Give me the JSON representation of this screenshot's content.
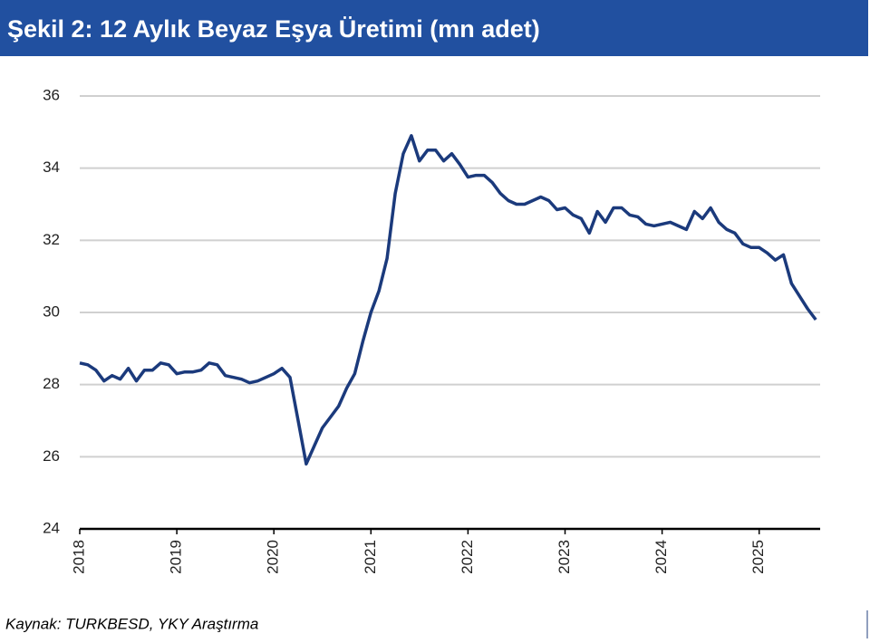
{
  "chart_data": {
    "type": "line",
    "title": "Şekil 2: 12 Aylık Beyaz Eşya Üretimi (mn adet)",
    "source": "Kaynak: TURKBESD, YKY Araştırma",
    "categories": [
      "2018",
      null,
      null,
      null,
      null,
      null,
      null,
      null,
      null,
      null,
      null,
      null,
      "2019",
      null,
      null,
      null,
      null,
      null,
      null,
      null,
      null,
      null,
      null,
      null,
      "2020",
      null,
      null,
      null,
      null,
      null,
      null,
      null,
      null,
      null,
      null,
      null,
      "2021",
      null,
      null,
      null,
      null,
      null,
      null,
      null,
      null,
      null,
      null,
      null,
      "2022",
      null,
      null,
      null,
      null,
      null,
      null,
      null,
      null,
      null,
      null,
      null,
      "2023",
      null,
      null,
      null,
      null,
      null,
      null,
      null,
      null,
      null,
      null,
      null,
      "2024",
      null,
      null,
      null,
      null,
      null,
      null,
      null,
      null,
      null,
      null,
      null,
      "2025",
      null,
      null,
      null,
      null,
      null,
      null,
      null
    ],
    "values": [
      28.6,
      28.55,
      28.4,
      28.1,
      28.25,
      28.15,
      28.45,
      28.1,
      28.4,
      28.4,
      28.6,
      28.55,
      28.3,
      28.35,
      28.35,
      28.4,
      28.6,
      28.55,
      28.25,
      28.2,
      28.15,
      28.05,
      28.1,
      28.2,
      28.3,
      28.45,
      28.2,
      27.0,
      25.8,
      26.3,
      26.8,
      27.1,
      27.4,
      27.9,
      28.3,
      29.2,
      30.0,
      30.6,
      31.5,
      33.3,
      34.4,
      34.9,
      34.2,
      34.5,
      34.5,
      34.2,
      34.4,
      34.1,
      33.75,
      33.8,
      33.8,
      33.6,
      33.3,
      33.1,
      33.0,
      33.0,
      33.1,
      33.2,
      33.1,
      32.85,
      32.9,
      32.7,
      32.6,
      32.2,
      32.8,
      32.5,
      32.9,
      32.9,
      32.7,
      32.65,
      32.45,
      32.4,
      32.45,
      32.5,
      32.4,
      32.3,
      32.8,
      32.6,
      32.9,
      32.5,
      32.3,
      32.2,
      31.9,
      31.8,
      31.8,
      31.65,
      31.45,
      31.6,
      30.8,
      30.45,
      30.1,
      29.8
    ],
    "color": "#1b3a7c",
    "ylim": [
      24,
      36
    ],
    "yticks": [
      24,
      26,
      28,
      30,
      32,
      34,
      36
    ],
    "grid": true
  }
}
